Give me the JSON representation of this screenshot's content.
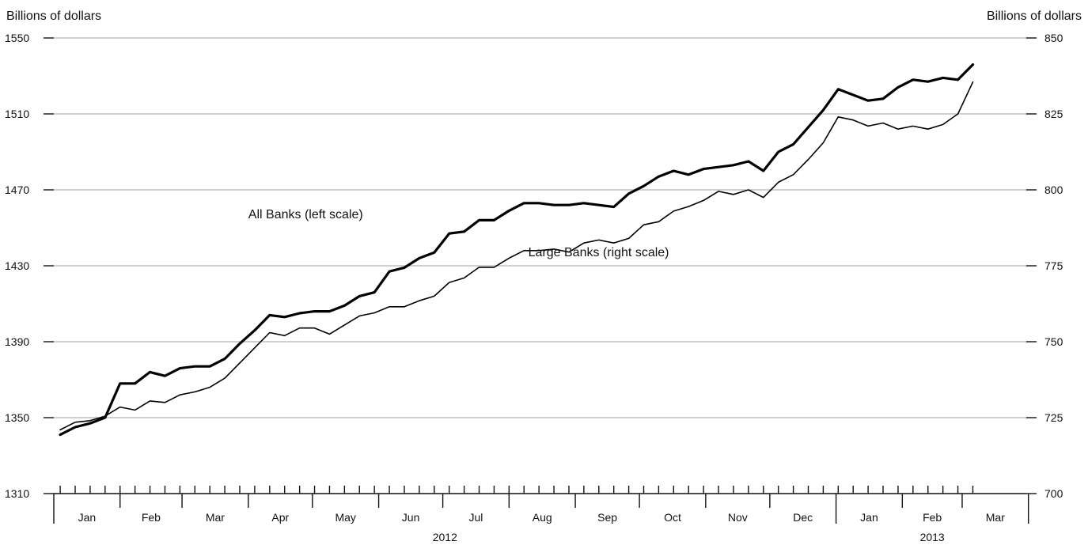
{
  "chart_data": {
    "type": "line",
    "left_axis": {
      "unit_label": "Billions of dollars",
      "ylim": [
        1310,
        1550
      ],
      "ticks": [
        "1550",
        "1510",
        "1470",
        "1430",
        "1390",
        "1350",
        "1310"
      ]
    },
    "right_axis": {
      "unit_label": "Billions of dollars",
      "ylim": [
        700,
        850
      ],
      "ticks": [
        "850",
        "825",
        "800",
        "775",
        "750",
        "725",
        "700"
      ]
    },
    "grid": true,
    "x_axis": {
      "months": [
        "Jan",
        "Feb",
        "Mar",
        "Apr",
        "May",
        "Jun",
        "Jul",
        "Aug",
        "Sep",
        "Oct",
        "Nov",
        "Dec",
        "Jan",
        "Feb",
        "Mar"
      ],
      "years": [
        "2012",
        "2013"
      ],
      "weekly_ticks": 62
    },
    "x": [
      "2012-01-04",
      "2012-01-11",
      "2012-01-18",
      "2012-01-25",
      "2012-02-01",
      "2012-02-08",
      "2012-02-15",
      "2012-02-22",
      "2012-02-29",
      "2012-03-07",
      "2012-03-14",
      "2012-03-21",
      "2012-03-28",
      "2012-04-04",
      "2012-04-11",
      "2012-04-18",
      "2012-04-25",
      "2012-05-02",
      "2012-05-09",
      "2012-05-16",
      "2012-05-23",
      "2012-05-30",
      "2012-06-06",
      "2012-06-13",
      "2012-06-20",
      "2012-06-27",
      "2012-07-04",
      "2012-07-11",
      "2012-07-18",
      "2012-07-25",
      "2012-08-01",
      "2012-08-08",
      "2012-08-15",
      "2012-08-22",
      "2012-08-29",
      "2012-09-05",
      "2012-09-12",
      "2012-09-19",
      "2012-09-26",
      "2012-10-03",
      "2012-10-10",
      "2012-10-17",
      "2012-10-24",
      "2012-10-31",
      "2012-11-07",
      "2012-11-14",
      "2012-11-21",
      "2012-11-28",
      "2012-12-05",
      "2012-12-12",
      "2012-12-19",
      "2012-12-26",
      "2013-01-02",
      "2013-01-09",
      "2013-01-16",
      "2013-01-23",
      "2013-01-30",
      "2013-02-06",
      "2013-02-13",
      "2013-02-20",
      "2013-02-27",
      "2013-03-06"
    ],
    "series": [
      {
        "name": "All Banks (left scale)",
        "axis": "left",
        "line_width": 3.2,
        "color": "#000000",
        "values": [
          1341,
          1345,
          1347,
          1350,
          1368,
          1368,
          1374,
          1372,
          1376,
          1377,
          1377,
          1381,
          1389,
          1396,
          1404,
          1403,
          1405,
          1406,
          1406,
          1409,
          1414,
          1416,
          1427,
          1429,
          1434,
          1437,
          1447,
          1448,
          1454,
          1454,
          1459,
          1463,
          1463,
          1462,
          1462,
          1463,
          1462,
          1461,
          1468,
          1472,
          1477,
          1480,
          1478,
          1481,
          1482,
          1483,
          1485,
          1480,
          1490,
          1494,
          1503,
          1512,
          1523,
          1520,
          1517,
          1518,
          1524,
          1528,
          1527,
          1529,
          1528,
          1536
        ]
      },
      {
        "name": "Large Banks (right scale)",
        "axis": "right",
        "line_width": 1.6,
        "color": "#000000",
        "values": [
          721,
          723.5,
          724,
          725.5,
          728.5,
          727.5,
          730.5,
          730,
          732.5,
          733.5,
          735,
          738,
          743,
          748,
          753,
          752,
          754.5,
          754.5,
          752.5,
          755.5,
          758.5,
          759.5,
          761.5,
          761.5,
          763.5,
          765,
          769.5,
          771,
          774.5,
          774.5,
          777.5,
          780,
          780,
          780.5,
          779.5,
          782.5,
          783.5,
          782.5,
          784,
          788.5,
          789.5,
          793,
          794.5,
          796.5,
          799.5,
          798.5,
          800,
          797.5,
          802.5,
          805,
          810,
          815.5,
          824,
          823,
          821,
          822,
          820,
          821,
          820,
          821.5,
          825,
          835.5
        ]
      }
    ],
    "annotations": [
      {
        "text": "All Banks (left scale)",
        "anchor": "2012-04-01",
        "y": 1455,
        "axis": "left"
      },
      {
        "text": "Large Banks (right scale)",
        "anchor": "2012-08-10",
        "y": 1435,
        "axis": "left"
      }
    ]
  }
}
